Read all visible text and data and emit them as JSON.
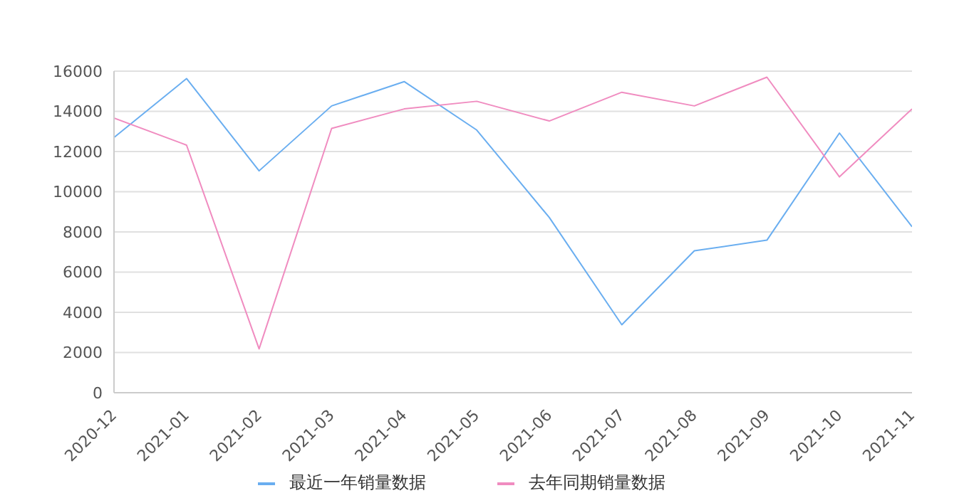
{
  "chart_data": {
    "type": "line",
    "categories": [
      "2020-12",
      "2021-01",
      "2021-02",
      "2021-03",
      "2021-04",
      "2021-05",
      "2021-06",
      "2021-07",
      "2021-08",
      "2021-09",
      "2021-10",
      "2021-11"
    ],
    "series": [
      {
        "name": "最近一年销量数据",
        "color": "#6aaef0",
        "values": [
          12700,
          15630,
          11040,
          14270,
          15480,
          13070,
          8720,
          3380,
          7060,
          7590,
          12920,
          8260
        ]
      },
      {
        "name": "去年同期销量数据",
        "color": "#f08cc0",
        "values": [
          13670,
          12320,
          2180,
          13150,
          14120,
          14500,
          13520,
          14950,
          14270,
          15700,
          10740,
          14120
        ]
      }
    ],
    "ylim": [
      0,
      16000
    ],
    "yticks": [
      0,
      2000,
      4000,
      6000,
      8000,
      10000,
      12000,
      14000,
      16000
    ],
    "grid": "y",
    "legend": "bottom",
    "marker": "none",
    "line_style": "solid"
  }
}
